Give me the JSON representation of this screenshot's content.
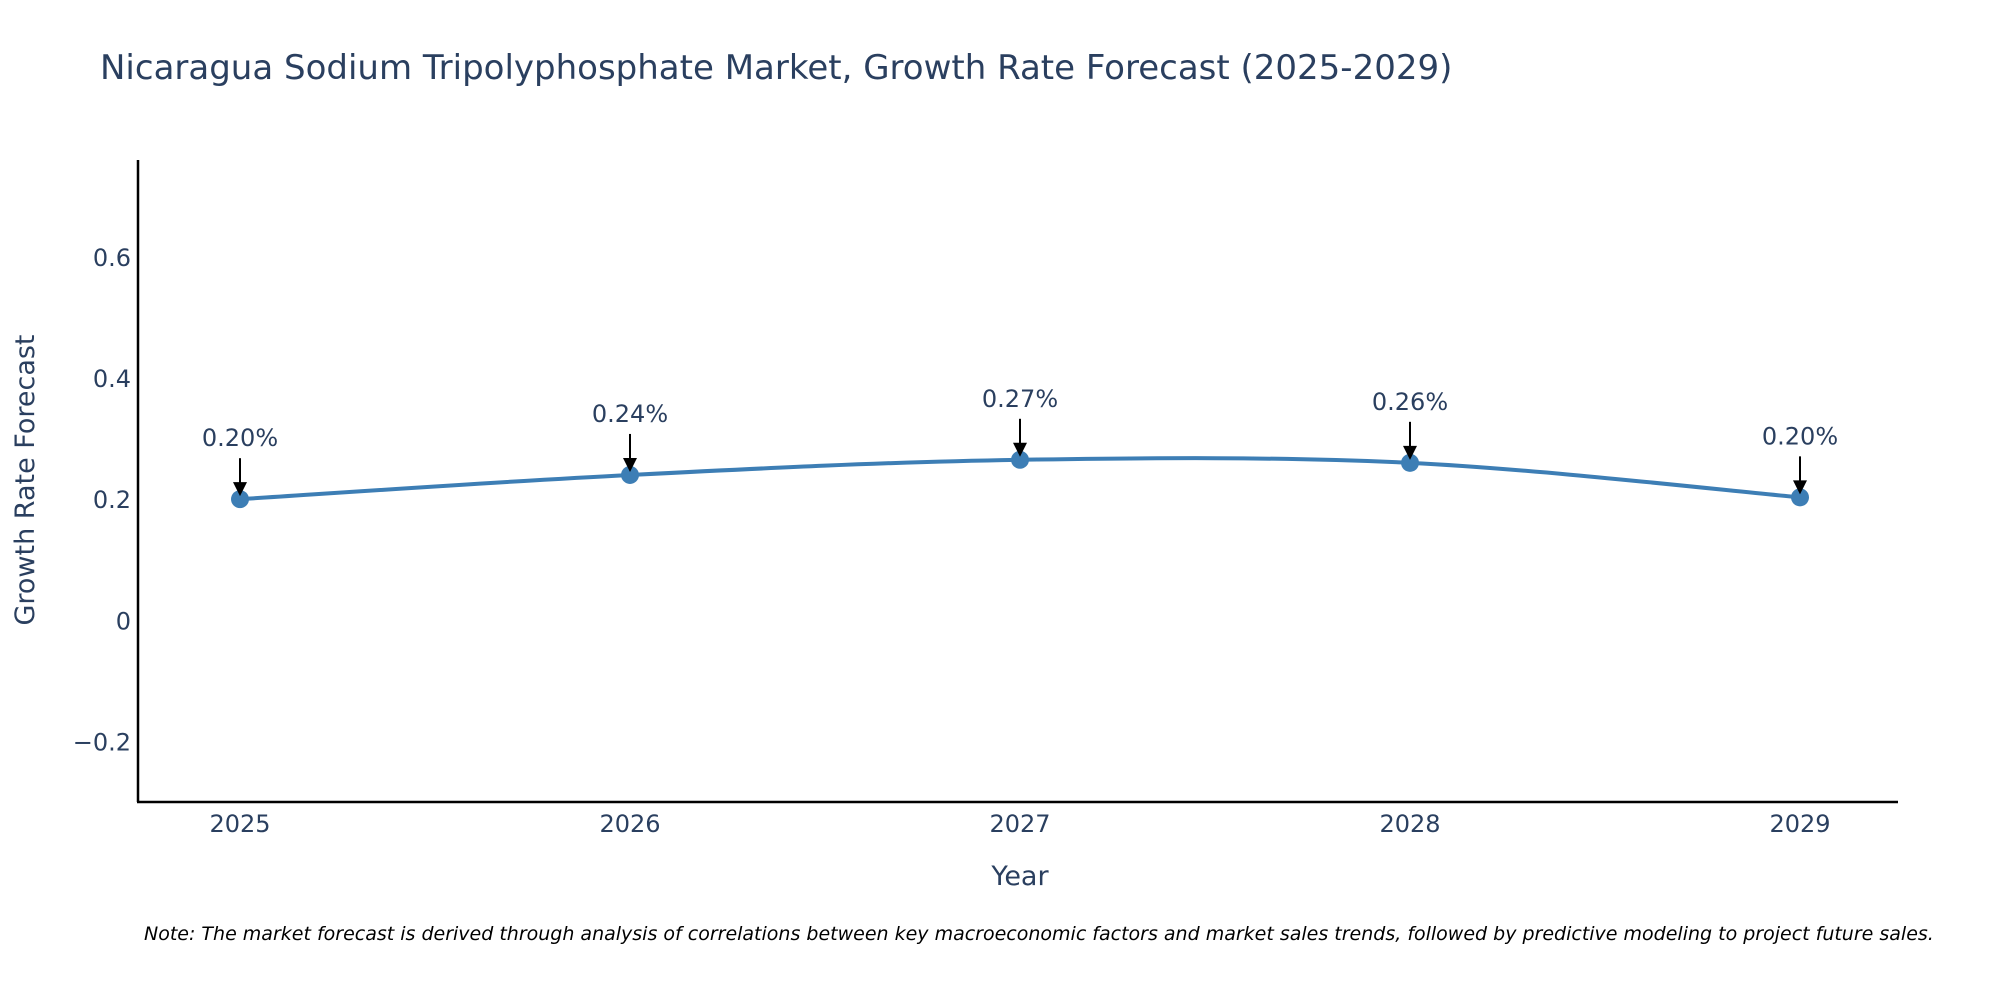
{
  "chart_data": {
    "type": "line",
    "title": "Nicaragua Sodium Tripolyphosphate Market, Growth Rate Forecast (2025-2029)",
    "xlabel": "Year",
    "ylabel": "Growth Rate Forecast",
    "categories": [
      "2025",
      "2026",
      "2027",
      "2028",
      "2029"
    ],
    "series": [
      {
        "name": "Growth Rate Forecast",
        "values": [
          0.2,
          0.24,
          0.265,
          0.26,
          0.203
        ],
        "labels": [
          "0.20%",
          "0.24%",
          "0.27%",
          "0.26%",
          "0.20%"
        ],
        "color": "#3d7eb5"
      }
    ],
    "ylim": [
      -0.3,
      0.76
    ],
    "yticks": [
      {
        "value": -0.2,
        "label": "−0.2"
      },
      {
        "value": 0,
        "label": "0"
      },
      {
        "value": 0.2,
        "label": "0.2"
      },
      {
        "value": 0.4,
        "label": "0.4"
      },
      {
        "value": 0.6,
        "label": "0.6"
      }
    ],
    "grid": false,
    "note": "Note: The market forecast is derived through analysis of correlations between key macroeconomic factors and market sales trends, followed by predictive modeling to project future sales."
  },
  "colors": {
    "text": "#2a3f5f",
    "axis": "#000000",
    "line": "#3d7eb5",
    "arrow": "#000000"
  }
}
